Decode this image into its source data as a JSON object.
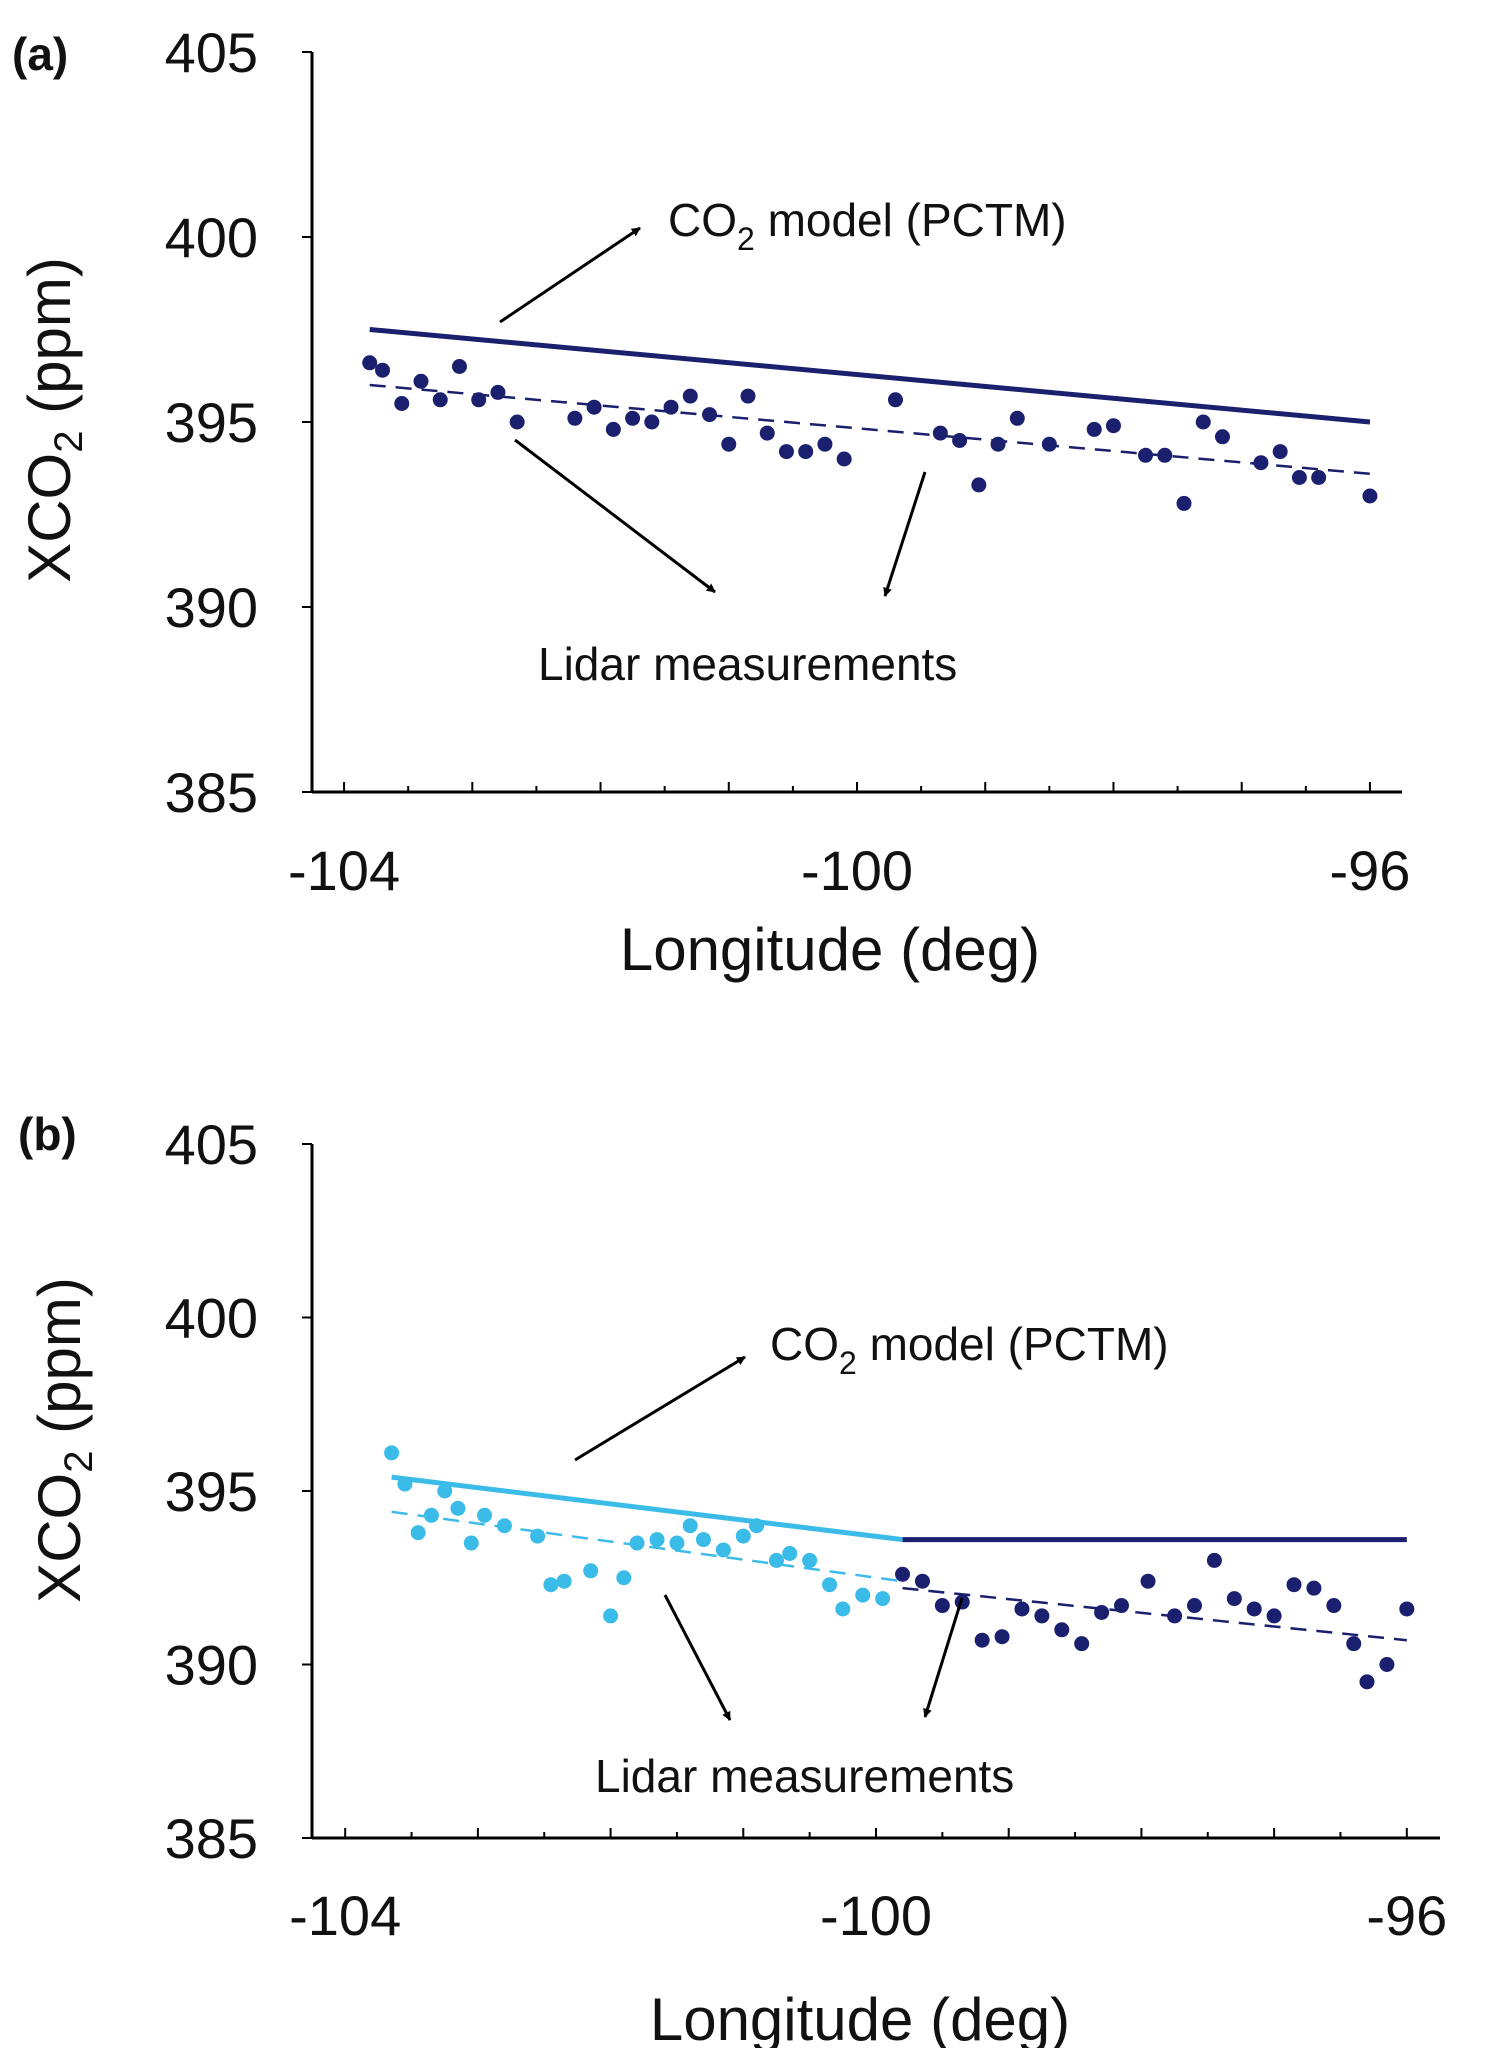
{
  "chart_data": [
    {
      "type": "scatter",
      "panel_label": "(a)",
      "xlabel": "Longitude (deg)",
      "ylabel": "XCO2 (ppm)",
      "ylabel_main": "XCO",
      "ylabel_sub": "2",
      "ylabel_rest": " (ppm)",
      "xlim": [
        -104.25,
        -95.75
      ],
      "ylim": [
        385,
        405
      ],
      "xticks": [
        -104,
        -100,
        -96
      ],
      "xtick_labels": [
        "-104",
        "-100",
        "-96"
      ],
      "yticks": [
        385,
        390,
        395,
        400,
        405
      ],
      "ytick_labels": [
        "385",
        "390",
        "395",
        "400",
        "405"
      ],
      "annotations": {
        "model_main": "CO",
        "model_sub": "2",
        "model_rest": " model (PCTM)",
        "lidar": "Lidar measurements"
      },
      "series": [
        {
          "name": "Lidar measurements",
          "kind": "points",
          "color": "#1a1f6e",
          "x": [
            -103.8,
            -103.7,
            -103.55,
            -103.4,
            -103.25,
            -103.1,
            -102.95,
            -102.8,
            -102.65,
            -102.2,
            -102.05,
            -101.9,
            -101.75,
            -101.6,
            -101.45,
            -101.3,
            -101.15,
            -101.0,
            -100.85,
            -100.7,
            -100.55,
            -100.4,
            -100.25,
            -100.1,
            -99.7,
            -99.35,
            -99.2,
            -99.05,
            -98.9,
            -98.75,
            -98.5,
            -98.15,
            -98.0,
            -97.75,
            -97.6,
            -97.45,
            -97.3,
            -97.15,
            -96.85,
            -96.7,
            -96.55,
            -96.4,
            -96.0
          ],
          "y": [
            396.6,
            396.4,
            395.5,
            396.1,
            395.6,
            396.5,
            395.6,
            395.8,
            395.0,
            395.1,
            395.4,
            394.8,
            395.1,
            395.0,
            395.4,
            395.7,
            395.2,
            394.4,
            395.7,
            394.7,
            394.2,
            394.2,
            394.4,
            394.0,
            395.6,
            394.7,
            394.5,
            393.3,
            394.4,
            395.1,
            394.4,
            394.8,
            394.9,
            394.1,
            394.1,
            392.8,
            395.0,
            394.6,
            393.9,
            394.2,
            393.5,
            393.5,
            393.0
          ]
        },
        {
          "name": "Lidar linear fit",
          "kind": "dashed-line",
          "color": "#1a1f6e",
          "x": [
            -103.8,
            -96.0
          ],
          "y": [
            396.0,
            393.6
          ]
        },
        {
          "name": "CO2 model (PCTM)",
          "kind": "line",
          "color": "#1a1f6e",
          "x": [
            -103.8,
            -96.0
          ],
          "y": [
            397.5,
            395.0
          ]
        }
      ]
    },
    {
      "type": "scatter",
      "panel_label": "(b)",
      "xlabel": "Longitude (deg)",
      "ylabel": "XCO2 (ppm)",
      "ylabel_main": "XCO",
      "ylabel_sub": "2",
      "ylabel_rest": " (ppm)",
      "xlim": [
        -104.25,
        -95.75
      ],
      "ylim": [
        385,
        405
      ],
      "xticks": [
        -104,
        -100,
        -96
      ],
      "xtick_labels": [
        "-104",
        "-100",
        "-96"
      ],
      "yticks": [
        385,
        390,
        395,
        400,
        405
      ],
      "ytick_labels": [
        "385",
        "390",
        "395",
        "400",
        "405"
      ],
      "annotations": {
        "model_main": "CO",
        "model_sub": "2",
        "model_rest": " model (PCTM)",
        "lidar": "Lidar measurements"
      },
      "series": [
        {
          "name": "Lidar measurements (west segment)",
          "kind": "points",
          "color": "#3bbbe8",
          "x": [
            -103.65,
            -103.55,
            -103.45,
            -103.35,
            -103.25,
            -103.15,
            -103.05,
            -102.95,
            -102.8,
            -102.55,
            -102.45,
            -102.35,
            -102.15,
            -102.0,
            -101.9,
            -101.8,
            -101.65,
            -101.5,
            -101.4,
            -101.3,
            -101.15,
            -101.0,
            -100.9,
            -100.75,
            -100.65,
            -100.5,
            -100.35,
            -100.25,
            -100.1,
            -99.95
          ],
          "y": [
            396.1,
            395.2,
            393.8,
            394.3,
            395.0,
            394.5,
            393.5,
            394.3,
            394.0,
            393.7,
            392.3,
            392.4,
            392.7,
            391.4,
            392.5,
            393.5,
            393.6,
            393.5,
            394.0,
            393.6,
            393.3,
            393.7,
            394.0,
            393.0,
            393.2,
            393.0,
            392.3,
            391.6,
            392.0,
            391.9
          ]
        },
        {
          "name": "Lidar measurements (east segment)",
          "kind": "points",
          "color": "#1a1f6e",
          "x": [
            -99.8,
            -99.65,
            -99.5,
            -99.35,
            -99.2,
            -99.05,
            -98.9,
            -98.75,
            -98.6,
            -98.45,
            -98.3,
            -98.15,
            -97.95,
            -97.75,
            -97.6,
            -97.45,
            -97.3,
            -97.15,
            -97.0,
            -96.85,
            -96.7,
            -96.55,
            -96.4,
            -96.3,
            -96.15,
            -96.0
          ],
          "y": [
            392.6,
            392.4,
            391.7,
            391.8,
            390.7,
            390.8,
            391.6,
            391.4,
            391.0,
            390.6,
            391.5,
            391.7,
            392.4,
            391.4,
            391.7,
            393.0,
            391.9,
            391.6,
            391.4,
            392.3,
            392.2,
            391.7,
            390.6,
            389.5,
            390.0,
            391.6
          ]
        },
        {
          "name": "Lidar linear fit (west)",
          "kind": "dashed-line",
          "color": "#3bbbe8",
          "x": [
            -103.65,
            -99.8
          ],
          "y": [
            394.4,
            392.4
          ]
        },
        {
          "name": "Lidar linear fit (east)",
          "kind": "dashed-line",
          "color": "#1a1f6e",
          "x": [
            -99.8,
            -96.0
          ],
          "y": [
            392.2,
            390.7
          ]
        },
        {
          "name": "CO2 model (PCTM) west",
          "kind": "line",
          "color": "#3bbbe8",
          "x": [
            -103.65,
            -99.8
          ],
          "y": [
            395.4,
            393.6
          ]
        },
        {
          "name": "CO2 model (PCTM) east",
          "kind": "line",
          "color": "#1a1f6e",
          "x": [
            -99.8,
            -96.0
          ],
          "y": [
            393.6,
            393.6
          ]
        }
      ]
    }
  ]
}
